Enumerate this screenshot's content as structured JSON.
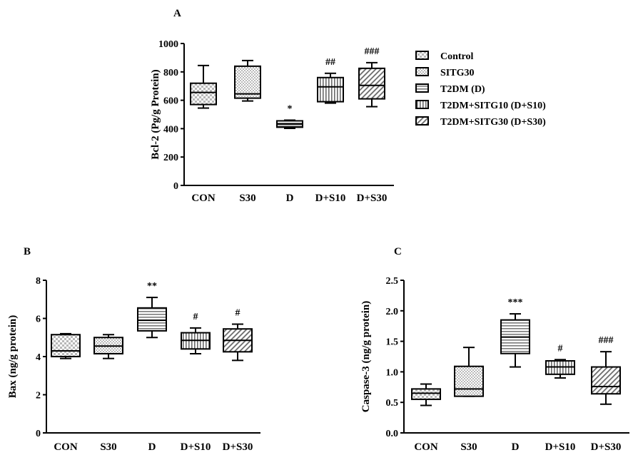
{
  "legend": [
    {
      "label": "Control",
      "pattern": "checker"
    },
    {
      "label": "SITG30",
      "pattern": "dots"
    },
    {
      "label": "T2DM (D)",
      "pattern": "hlines"
    },
    {
      "label": "T2DM+SITG10 (D+S10)",
      "pattern": "vlines"
    },
    {
      "label": "T2DM+SITG30 (D+S30)",
      "pattern": "diag"
    }
  ],
  "chart_data": [
    {
      "panel": "A",
      "type": "box",
      "ylabel": "Bcl-2 (Pg/g Protein)",
      "ylim": [
        0,
        1000
      ],
      "yticks": [
        "0",
        "200",
        "400",
        "600",
        "800",
        "1000"
      ],
      "categories": [
        "CON",
        "S30",
        "D",
        "D+S10",
        "D+S30"
      ],
      "boxes": [
        {
          "min": 545,
          "q1": 570,
          "median": 655,
          "q3": 720,
          "max": 845,
          "sig": ""
        },
        {
          "min": 595,
          "q1": 615,
          "median": 645,
          "q3": 840,
          "max": 880,
          "sig": ""
        },
        {
          "min": 402,
          "q1": 410,
          "median": 432,
          "q3": 455,
          "max": 460,
          "sig": "*"
        },
        {
          "min": 580,
          "q1": 590,
          "median": 695,
          "q3": 760,
          "max": 790,
          "sig": "##"
        },
        {
          "min": 555,
          "q1": 610,
          "median": 705,
          "q3": 825,
          "max": 865,
          "sig": "###"
        }
      ]
    },
    {
      "panel": "B",
      "type": "box",
      "ylabel": "Bax (ng/g protein)",
      "ylim": [
        0,
        8
      ],
      "yticks": [
        "0",
        "2",
        "4",
        "6",
        "8"
      ],
      "categories": [
        "CON",
        "S30",
        "D",
        "D+S10",
        "D+S30"
      ],
      "boxes": [
        {
          "min": 3.9,
          "q1": 4.0,
          "median": 4.3,
          "q3": 5.15,
          "max": 5.2,
          "sig": ""
        },
        {
          "min": 3.9,
          "q1": 4.15,
          "median": 4.55,
          "q3": 5.0,
          "max": 5.15,
          "sig": ""
        },
        {
          "min": 5.0,
          "q1": 5.35,
          "median": 5.9,
          "q3": 6.55,
          "max": 7.1,
          "sig": "**"
        },
        {
          "min": 4.15,
          "q1": 4.4,
          "median": 4.85,
          "q3": 5.25,
          "max": 5.5,
          "sig": "#"
        },
        {
          "min": 3.8,
          "q1": 4.25,
          "median": 4.85,
          "q3": 5.45,
          "max": 5.7,
          "sig": "#"
        }
      ]
    },
    {
      "panel": "C",
      "type": "box",
      "ylabel": "Caspase-3 (ng/g protein)",
      "ylim": [
        0,
        2.5
      ],
      "yticks": [
        "0.0",
        "0.5",
        "1.0",
        "1.5",
        "2.0",
        "2.5"
      ],
      "categories": [
        "CON",
        "S30",
        "D",
        "D+S10",
        "D+S30"
      ],
      "boxes": [
        {
          "min": 0.45,
          "q1": 0.55,
          "median": 0.65,
          "q3": 0.72,
          "max": 0.8,
          "sig": ""
        },
        {
          "min": 0.6,
          "q1": 0.6,
          "median": 0.72,
          "q3": 1.09,
          "max": 1.4,
          "sig": ""
        },
        {
          "min": 1.08,
          "q1": 1.3,
          "median": 1.57,
          "q3": 1.85,
          "max": 1.95,
          "sig": "***"
        },
        {
          "min": 0.9,
          "q1": 0.96,
          "median": 1.08,
          "q3": 1.18,
          "max": 1.2,
          "sig": "#"
        },
        {
          "min": 0.47,
          "q1": 0.64,
          "median": 0.76,
          "q3": 1.08,
          "max": 1.33,
          "sig": "###"
        }
      ]
    }
  ]
}
